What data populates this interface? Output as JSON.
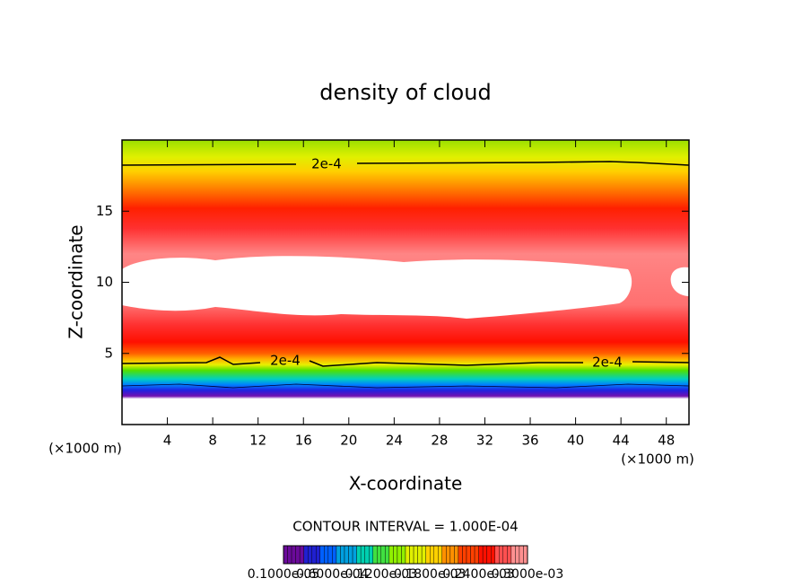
{
  "chart_data": {
    "type": "contour",
    "title": "density of cloud",
    "x_label": "X-coordinate",
    "y_label": "Z-coordinate",
    "x_unit": "(×1000 m)",
    "xlim": [
      0,
      50
    ],
    "xticks": [
      4,
      8,
      12,
      16,
      20,
      24,
      28,
      32,
      36,
      40,
      44,
      48
    ],
    "ylim": [
      0,
      20
    ],
    "yticks": [
      5,
      10,
      15
    ],
    "contour_label": "2e-4",
    "contour_interval": "CONTOUR INTERVAL = 1.000E-04",
    "colorbar_labels": [
      "0.1000e-05",
      "0.6000e-04",
      "0.1200e-03",
      "0.1800e-03",
      "0.2400e-03",
      "0.3000e-03"
    ],
    "colormap": [
      "#6a0a9a",
      "#2020d0",
      "#0060ff",
      "#00a0e0",
      "#00d0b0",
      "#40e040",
      "#90f000",
      "#e0f000",
      "#ffd000",
      "#ff9000",
      "#ff4000",
      "#ff1000",
      "#ff5050",
      "#ff9090"
    ]
  }
}
